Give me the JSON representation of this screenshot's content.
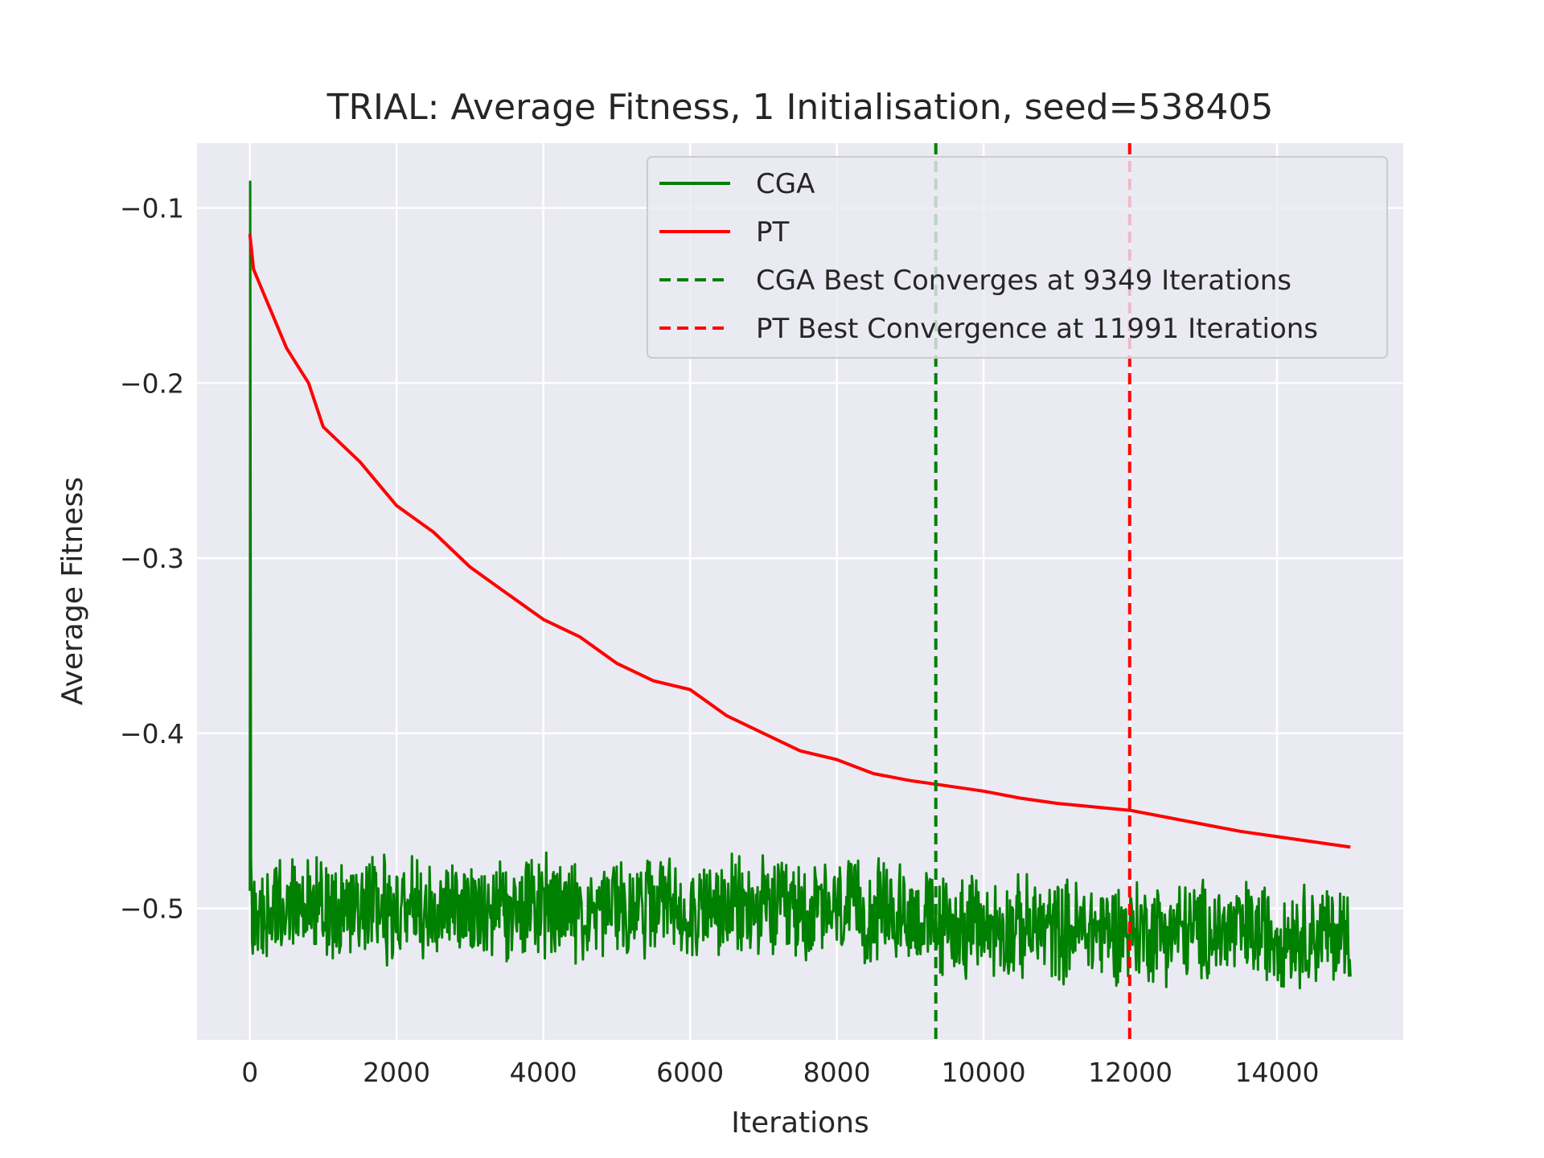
{
  "chart_data": {
    "type": "line",
    "title": "TRIAL: Average Fitness, 1 Initialisation, seed=538405",
    "xlabel": "Iterations",
    "ylabel": "Average Fitness",
    "xlim": [
      -720,
      15720
    ],
    "ylim": [
      -0.575,
      -0.063
    ],
    "xticks": [
      0,
      2000,
      4000,
      6000,
      8000,
      10000,
      12000,
      14000
    ],
    "xtick_labels": [
      "0",
      "2000",
      "4000",
      "6000",
      "8000",
      "10000",
      "12000",
      "14000"
    ],
    "yticks": [
      -0.1,
      -0.2,
      -0.3,
      -0.4,
      -0.5
    ],
    "ytick_labels": [
      "−0.1",
      "−0.2",
      "−0.3",
      "−0.4",
      "−0.5"
    ],
    "grid": true,
    "legend_position": "top-right",
    "background": "#eaeaf2",
    "series": [
      {
        "name": "CGA",
        "color": "#008000",
        "style": "noisy",
        "description_points": {
          "x": [
            0,
            5,
            15,
            30,
            100,
            1000,
            3000,
            6000,
            9000,
            9349,
            11000,
            13000,
            15000
          ],
          "y": [
            -0.49,
            -0.085,
            -0.47,
            -0.5,
            -0.5,
            -0.5,
            -0.5,
            -0.5,
            -0.503,
            -0.51,
            -0.512,
            -0.513,
            -0.515
          ]
        },
        "noise_amplitude": 0.028,
        "range_min": -0.553,
        "range_max": -0.451
      },
      {
        "name": "PT",
        "color": "#ff0000",
        "style": "solid",
        "x": [
          0,
          50,
          200,
          500,
          800,
          1000,
          1500,
          2000,
          2500,
          3000,
          3500,
          4000,
          4500,
          5000,
          5500,
          6000,
          6500,
          7000,
          7500,
          8000,
          8500,
          9000,
          9500,
          10000,
          10500,
          11000,
          11500,
          12000,
          12500,
          13000,
          13500,
          14000,
          14500,
          15000
        ],
        "y": [
          -0.115,
          -0.135,
          -0.15,
          -0.18,
          -0.2,
          -0.225,
          -0.245,
          -0.27,
          -0.285,
          -0.305,
          -0.32,
          -0.335,
          -0.345,
          -0.36,
          -0.37,
          -0.375,
          -0.39,
          -0.4,
          -0.41,
          -0.415,
          -0.423,
          -0.427,
          -0.43,
          -0.433,
          -0.437,
          -0.44,
          -0.442,
          -0.444,
          -0.448,
          -0.452,
          -0.456,
          -0.459,
          -0.462,
          -0.465
        ]
      },
      {
        "name": "CGA Best Converges at 9349 Iterations",
        "color": "#008000",
        "style": "dashed-vertical",
        "x_value": 9349
      },
      {
        "name": "PT Best Convergence at 11991 Iterations",
        "color": "#ff0000",
        "style": "dashed-vertical",
        "x_value": 11991
      }
    ]
  }
}
